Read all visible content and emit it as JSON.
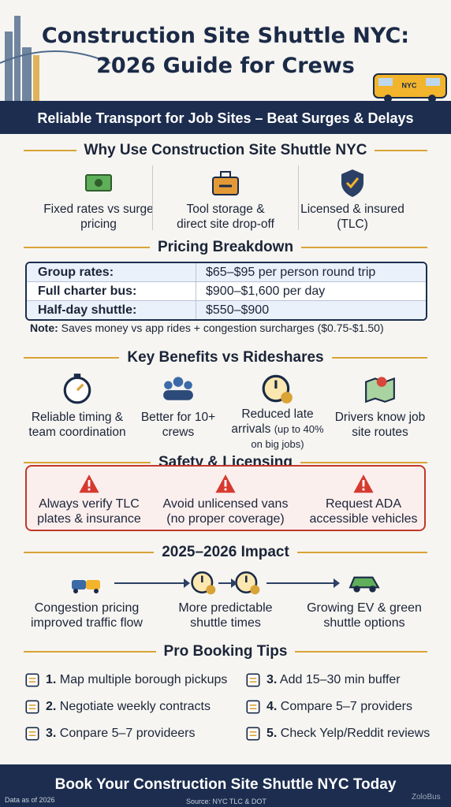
{
  "header": {
    "title_line1": "Construction Site Shuttle NYC:",
    "title_line2": "2026 Guide for Crews",
    "bus_label": "NYC",
    "subtitle": "Reliable Transport for Job Sites – Beat Surges & Delays"
  },
  "why": {
    "heading": "Why Use Construction Site Shuttle NYC",
    "items": [
      "Fixed rates vs surge pricing",
      "Tool storage & direct site drop-off",
      "Licensed & insured (TLC)"
    ]
  },
  "pricing": {
    "heading": "Pricing Breakdown",
    "rows": [
      [
        "Group rates:",
        "$65–$95 per person round trip"
      ],
      [
        "Full charter bus:",
        "$900–$1,600 per day"
      ],
      [
        "Half-day shuttle:",
        "$550–$900"
      ]
    ],
    "note_label": "Note:",
    "note_text": "Saves money vs app rides + congestion surcharges ($0.75-$1.50)"
  },
  "benefits": {
    "heading": "Key Benefits vs Rideshares",
    "items": [
      {
        "text": "Reliable timing & team coordination"
      },
      {
        "text": "Better for 10+ crews"
      },
      {
        "text": "Reduced late arrivals",
        "detail": "(up to 40% on big jobs)"
      },
      {
        "text": "Drivers know job site routes"
      }
    ]
  },
  "safety": {
    "heading": "Safety & Licensing",
    "items": [
      "Always verify TLC plates & insurance",
      "Avoid unlicensed vans (no proper coverage)",
      "Request ADA accessible vehicles"
    ]
  },
  "impact": {
    "heading": "2025–2026 Impact",
    "items": [
      "Congestion pricing improved traffic flow",
      "More predictable shuttle times",
      "Growing EV & green shuttle options"
    ]
  },
  "tips": {
    "heading": "Pro Booking Tips",
    "items": [
      {
        "number": "1.",
        "text": "Map multiple borough pickups"
      },
      {
        "number": "2.",
        "text": "Negotiate weekly contracts"
      },
      {
        "number": "3.",
        "text": "Conpare 5–7 provideers"
      },
      {
        "number": "3.",
        "text": "Add 15–30 min buffer"
      },
      {
        "number": "4.",
        "text": "Compare 5–7 providers"
      },
      {
        "number": "5.",
        "text": "Check Yelp/Reddit reviews"
      }
    ]
  },
  "footer": {
    "cta": "Book Your Construction Site Shuttle NYC Today",
    "data_note": "Data as of 2026",
    "source": "Source: NYC TLC & DOT",
    "watermark": "ZoloBus"
  }
}
